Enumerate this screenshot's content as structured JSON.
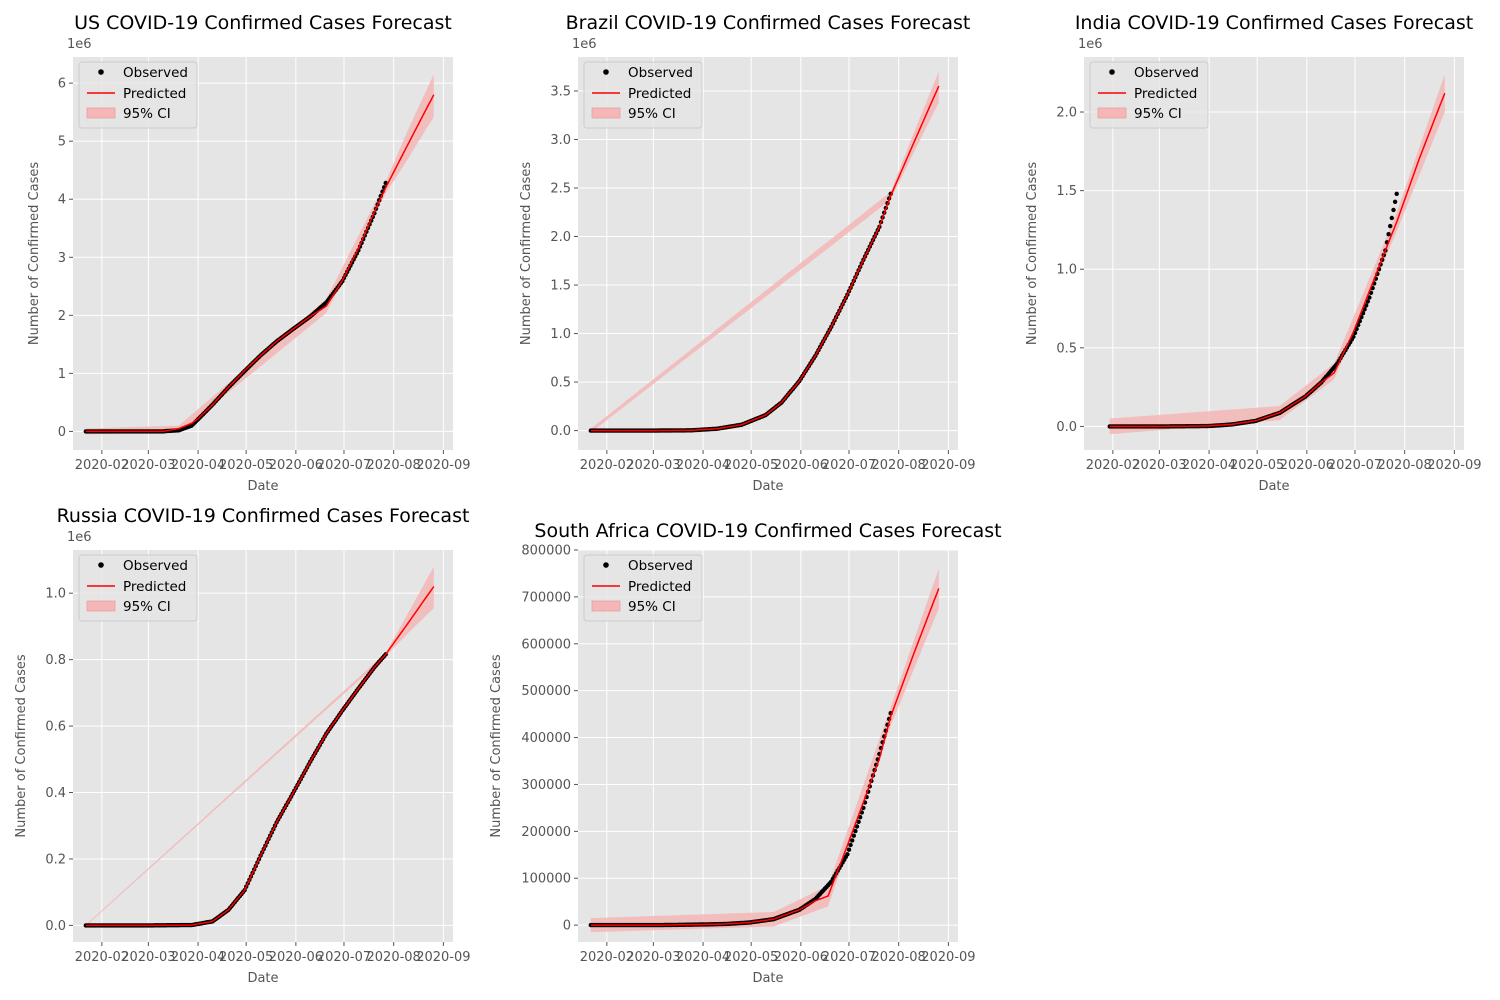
{
  "legend_labels": {
    "observed": "Observed",
    "predicted": "Predicted",
    "ci": "95% CI"
  },
  "colors": {
    "observed": "#000000",
    "predicted": "#ff0000",
    "ci": "#f4b6b6",
    "panel_bg": "#e5e5e5",
    "grid": "#ffffff",
    "text": "#555555",
    "title": "#000000"
  },
  "chart_data": [
    {
      "type": "line",
      "title": "US COVID-19 Confirmed Cases Forecast",
      "xlabel": "Date",
      "ylabel": "Number of Confirmed Cases",
      "y_offset_label": "1e6",
      "xticks": [
        "2020-02",
        "2020-03",
        "2020-04",
        "2020-05",
        "2020-06",
        "2020-07",
        "2020-08",
        "2020-09"
      ],
      "xlim": [
        "2020-01-14",
        "2020-09-07"
      ],
      "ylim": [
        -0.32,
        6.45
      ],
      "yticks": [
        0,
        1,
        2,
        3,
        4,
        5,
        6
      ],
      "yticklabels": [
        "0",
        "1",
        "2",
        "3",
        "4",
        "5",
        "6"
      ],
      "observed_range": [
        "2020-01-22",
        "2020-07-27"
      ],
      "forecast_end": "2020-08-26",
      "grid": true,
      "legend_position": "upper-left",
      "observed": [
        [
          "2020-01-22",
          0
        ],
        [
          "2020-02-15",
          0
        ],
        [
          "2020-03-10",
          0.001
        ],
        [
          "2020-03-20",
          0.02
        ],
        [
          "2020-03-28",
          0.1
        ],
        [
          "2020-04-01",
          0.21
        ],
        [
          "2020-04-10",
          0.46
        ],
        [
          "2020-04-20",
          0.76
        ],
        [
          "2020-04-30",
          1.04
        ],
        [
          "2020-05-10",
          1.31
        ],
        [
          "2020-05-20",
          1.55
        ],
        [
          "2020-05-31",
          1.78
        ],
        [
          "2020-06-10",
          1.98
        ],
        [
          "2020-06-20",
          2.22
        ],
        [
          "2020-06-30",
          2.59
        ],
        [
          "2020-07-10",
          3.12
        ],
        [
          "2020-07-20",
          3.76
        ],
        [
          "2020-07-27",
          4.28
        ]
      ],
      "predicted": [
        [
          "2020-01-22",
          0
        ],
        [
          "2020-02-15",
          0
        ],
        [
          "2020-03-10",
          0
        ],
        [
          "2020-03-20",
          0.05
        ],
        [
          "2020-03-28",
          0.14
        ],
        [
          "2020-04-01",
          0.22
        ],
        [
          "2020-04-10",
          0.46
        ],
        [
          "2020-04-20",
          0.76
        ],
        [
          "2020-04-30",
          1.05
        ],
        [
          "2020-05-10",
          1.31
        ],
        [
          "2020-05-20",
          1.55
        ],
        [
          "2020-05-31",
          1.78
        ],
        [
          "2020-06-10",
          1.98
        ],
        [
          "2020-06-20",
          2.16
        ],
        [
          "2020-06-30",
          2.6
        ],
        [
          "2020-07-10",
          3.15
        ],
        [
          "2020-07-20",
          3.78
        ],
        [
          "2020-07-27",
          4.2
        ],
        [
          "2020-08-10",
          4.95
        ],
        [
          "2020-08-26",
          5.8
        ]
      ],
      "ci_lower": [
        [
          "2020-01-22",
          -0.05
        ],
        [
          "2020-03-20",
          -0.02
        ],
        [
          "2020-06-20",
          2.04
        ],
        [
          "2020-07-27",
          4.1
        ],
        [
          "2020-08-10",
          4.7
        ],
        [
          "2020-08-26",
          5.42
        ]
      ],
      "ci_upper": [
        [
          "2020-01-22",
          0.05
        ],
        [
          "2020-03-20",
          0.1
        ],
        [
          "2020-06-20",
          2.28
        ],
        [
          "2020-07-27",
          4.3
        ],
        [
          "2020-08-10",
          5.2
        ],
        [
          "2020-08-26",
          6.15
        ]
      ]
    },
    {
      "type": "line",
      "title": "Brazil COVID-19 Confirmed Cases Forecast",
      "xlabel": "Date",
      "ylabel": "Number of Confirmed Cases",
      "y_offset_label": "1e6",
      "xticks": [
        "2020-02",
        "2020-03",
        "2020-04",
        "2020-05",
        "2020-06",
        "2020-07",
        "2020-08",
        "2020-09"
      ],
      "xlim": [
        "2020-01-14",
        "2020-09-07"
      ],
      "ylim": [
        -0.2,
        3.85
      ],
      "yticks": [
        0,
        0.5,
        1.0,
        1.5,
        2.0,
        2.5,
        3.0,
        3.5
      ],
      "yticklabels": [
        "0.0",
        "0.5",
        "1.0",
        "1.5",
        "2.0",
        "2.5",
        "3.0",
        "3.5"
      ],
      "observed_range": [
        "2020-01-22",
        "2020-07-27"
      ],
      "forecast_end": "2020-08-26",
      "grid": true,
      "legend_position": "upper-left",
      "observed": [
        [
          "2020-01-22",
          0
        ],
        [
          "2020-03-01",
          0
        ],
        [
          "2020-03-25",
          0.003
        ],
        [
          "2020-04-10",
          0.02
        ],
        [
          "2020-04-25",
          0.06
        ],
        [
          "2020-05-10",
          0.16
        ],
        [
          "2020-05-20",
          0.29
        ],
        [
          "2020-05-31",
          0.51
        ],
        [
          "2020-06-10",
          0.77
        ],
        [
          "2020-06-20",
          1.07
        ],
        [
          "2020-06-30",
          1.4
        ],
        [
          "2020-07-10",
          1.76
        ],
        [
          "2020-07-20",
          2.1
        ],
        [
          "2020-07-27",
          2.44
        ]
      ],
      "predicted": [
        [
          "2020-01-22",
          0
        ],
        [
          "2020-03-01",
          0
        ],
        [
          "2020-03-25",
          0.003
        ],
        [
          "2020-04-10",
          0.02
        ],
        [
          "2020-04-25",
          0.06
        ],
        [
          "2020-05-10",
          0.16
        ],
        [
          "2020-05-20",
          0.29
        ],
        [
          "2020-05-31",
          0.51
        ],
        [
          "2020-06-10",
          0.77
        ],
        [
          "2020-06-20",
          1.07
        ],
        [
          "2020-06-30",
          1.4
        ],
        [
          "2020-07-10",
          1.76
        ],
        [
          "2020-07-20",
          2.1
        ],
        [
          "2020-07-27",
          2.42
        ],
        [
          "2020-08-10",
          2.95
        ],
        [
          "2020-08-26",
          3.55
        ]
      ],
      "ci_lower": [
        [
          "2020-01-22",
          -0.02
        ],
        [
          "2020-07-27",
          2.38
        ],
        [
          "2020-08-10",
          2.85
        ],
        [
          "2020-08-26",
          3.38
        ]
      ],
      "ci_upper": [
        [
          "2020-01-22",
          0.02
        ],
        [
          "2020-07-27",
          2.46
        ],
        [
          "2020-08-10",
          3.05
        ],
        [
          "2020-08-26",
          3.7
        ]
      ]
    },
    {
      "type": "line",
      "title": "India COVID-19 Confirmed Cases Forecast",
      "xlabel": "Date",
      "ylabel": "Number of Confirmed Cases",
      "y_offset_label": "1e6",
      "xticks": [
        "2020-02",
        "2020-03",
        "2020-04",
        "2020-05",
        "2020-06",
        "2020-07",
        "2020-08",
        "2020-09"
      ],
      "xlim": [
        "2020-01-14",
        "2020-09-07"
      ],
      "ylim": [
        -0.15,
        2.35
      ],
      "yticks": [
        0,
        0.5,
        1.0,
        1.5,
        2.0
      ],
      "yticklabels": [
        "0.0",
        "0.5",
        "1.0",
        "1.5",
        "2.0"
      ],
      "observed_range": [
        "2020-01-30",
        "2020-07-27"
      ],
      "forecast_end": "2020-08-26",
      "grid": true,
      "legend_position": "upper-left",
      "observed": [
        [
          "2020-01-30",
          0
        ],
        [
          "2020-03-01",
          0
        ],
        [
          "2020-03-31",
          0.002
        ],
        [
          "2020-04-15",
          0.012
        ],
        [
          "2020-04-30",
          0.035
        ],
        [
          "2020-05-15",
          0.086
        ],
        [
          "2020-05-31",
          0.19
        ],
        [
          "2020-06-10",
          0.28
        ],
        [
          "2020-06-20",
          0.4
        ],
        [
          "2020-06-30",
          0.57
        ],
        [
          "2020-07-10",
          0.82
        ],
        [
          "2020-07-20",
          1.12
        ],
        [
          "2020-07-27",
          1.48
        ]
      ],
      "predicted": [
        [
          "2020-01-30",
          0
        ],
        [
          "2020-03-01",
          0
        ],
        [
          "2020-03-31",
          0.003
        ],
        [
          "2020-04-15",
          0.013
        ],
        [
          "2020-04-30",
          0.036
        ],
        [
          "2020-05-15",
          0.087
        ],
        [
          "2020-05-31",
          0.19
        ],
        [
          "2020-06-10",
          0.28
        ],
        [
          "2020-06-18",
          0.34
        ],
        [
          "2020-06-30",
          0.6
        ],
        [
          "2020-07-10",
          0.86
        ],
        [
          "2020-07-20",
          1.12
        ],
        [
          "2020-07-27",
          1.3
        ],
        [
          "2020-08-10",
          1.7
        ],
        [
          "2020-08-26",
          2.12
        ]
      ],
      "ci_lower": [
        [
          "2020-01-30",
          -0.05
        ],
        [
          "2020-05-15",
          0.04
        ],
        [
          "2020-06-18",
          0.3
        ],
        [
          "2020-07-27",
          1.24
        ],
        [
          "2020-08-26",
          2.0
        ]
      ],
      "ci_upper": [
        [
          "2020-01-30",
          0.05
        ],
        [
          "2020-05-15",
          0.13
        ],
        [
          "2020-06-18",
          0.4
        ],
        [
          "2020-07-27",
          1.36
        ],
        [
          "2020-08-26",
          2.24
        ]
      ]
    },
    {
      "type": "line",
      "title": "Russia COVID-19 Confirmed Cases Forecast",
      "xlabel": "Date",
      "ylabel": "Number of Confirmed Cases",
      "y_offset_label": "1e6",
      "xticks": [
        "2020-02",
        "2020-03",
        "2020-04",
        "2020-05",
        "2020-06",
        "2020-07",
        "2020-08",
        "2020-09"
      ],
      "xlim": [
        "2020-01-14",
        "2020-09-07"
      ],
      "ylim": [
        -0.05,
        1.13
      ],
      "yticks": [
        0,
        0.2,
        0.4,
        0.6,
        0.8,
        1.0
      ],
      "yticklabels": [
        "0.0",
        "0.2",
        "0.4",
        "0.6",
        "0.8",
        "1.0"
      ],
      "observed_range": [
        "2020-01-22",
        "2020-07-27"
      ],
      "forecast_end": "2020-08-26",
      "grid": true,
      "legend_position": "upper-left",
      "observed": [
        [
          "2020-01-22",
          0
        ],
        [
          "2020-03-01",
          0
        ],
        [
          "2020-03-28",
          0.001
        ],
        [
          "2020-04-10",
          0.012
        ],
        [
          "2020-04-20",
          0.047
        ],
        [
          "2020-04-30",
          0.106
        ],
        [
          "2020-05-10",
          0.21
        ],
        [
          "2020-05-20",
          0.31
        ],
        [
          "2020-05-31",
          0.405
        ],
        [
          "2020-06-10",
          0.493
        ],
        [
          "2020-06-20",
          0.577
        ],
        [
          "2020-06-30",
          0.647
        ],
        [
          "2020-07-10",
          0.713
        ],
        [
          "2020-07-20",
          0.777
        ],
        [
          "2020-07-27",
          0.816
        ]
      ],
      "predicted": [
        [
          "2020-01-22",
          0
        ],
        [
          "2020-03-01",
          0
        ],
        [
          "2020-03-28",
          0.001
        ],
        [
          "2020-04-10",
          0.012
        ],
        [
          "2020-04-20",
          0.047
        ],
        [
          "2020-04-30",
          0.106
        ],
        [
          "2020-05-10",
          0.21
        ],
        [
          "2020-05-20",
          0.31
        ],
        [
          "2020-05-31",
          0.405
        ],
        [
          "2020-06-10",
          0.493
        ],
        [
          "2020-06-20",
          0.577
        ],
        [
          "2020-06-30",
          0.647
        ],
        [
          "2020-07-10",
          0.713
        ],
        [
          "2020-07-20",
          0.777
        ],
        [
          "2020-07-27",
          0.816
        ],
        [
          "2020-08-10",
          0.91
        ],
        [
          "2020-08-26",
          1.02
        ]
      ],
      "ci_lower": [
        [
          "2020-01-22",
          -0.002
        ],
        [
          "2020-07-27",
          0.81
        ],
        [
          "2020-08-10",
          0.88
        ],
        [
          "2020-08-26",
          0.955
        ]
      ],
      "ci_upper": [
        [
          "2020-01-22",
          0.002
        ],
        [
          "2020-07-27",
          0.82
        ],
        [
          "2020-08-10",
          0.94
        ],
        [
          "2020-08-26",
          1.08
        ]
      ]
    },
    {
      "type": "line",
      "title": "South Africa COVID-19 Confirmed Cases Forecast",
      "xlabel": "Date",
      "ylabel": "Number of Confirmed Cases",
      "y_offset_label": "",
      "xticks": [
        "2020-02",
        "2020-03",
        "2020-04",
        "2020-05",
        "2020-06",
        "2020-07",
        "2020-08",
        "2020-09"
      ],
      "xlim": [
        "2020-01-14",
        "2020-09-07"
      ],
      "ylim": [
        -36000,
        800000
      ],
      "yticks": [
        0,
        100000,
        200000,
        300000,
        400000,
        500000,
        600000,
        700000,
        800000
      ],
      "yticklabels": [
        "0",
        "100000",
        "200000",
        "300000",
        "400000",
        "500000",
        "600000",
        "700000",
        "800000"
      ],
      "observed_range": [
        "2020-01-22",
        "2020-07-27"
      ],
      "forecast_end": "2020-08-26",
      "grid": true,
      "legend_position": "upper-left",
      "observed": [
        [
          "2020-01-22",
          0
        ],
        [
          "2020-03-05",
          0
        ],
        [
          "2020-03-31",
          1300
        ],
        [
          "2020-04-15",
          2400
        ],
        [
          "2020-04-30",
          5600
        ],
        [
          "2020-05-15",
          12700
        ],
        [
          "2020-05-31",
          32700
        ],
        [
          "2020-06-10",
          55400
        ],
        [
          "2020-06-20",
          92700
        ],
        [
          "2020-06-30",
          151000
        ],
        [
          "2020-07-10",
          250000
        ],
        [
          "2020-07-20",
          365000
        ],
        [
          "2020-07-27",
          452000
        ]
      ],
      "predicted": [
        [
          "2020-01-22",
          0
        ],
        [
          "2020-03-05",
          0
        ],
        [
          "2020-03-31",
          1300
        ],
        [
          "2020-04-15",
          2400
        ],
        [
          "2020-04-30",
          5600
        ],
        [
          "2020-05-15",
          12700
        ],
        [
          "2020-05-31",
          32700
        ],
        [
          "2020-06-10",
          52000
        ],
        [
          "2020-06-18",
          62000
        ],
        [
          "2020-06-30",
          170000
        ],
        [
          "2020-07-10",
          262000
        ],
        [
          "2020-07-20",
          355000
        ],
        [
          "2020-07-27",
          445000
        ],
        [
          "2020-08-10",
          575000
        ],
        [
          "2020-08-26",
          718000
        ]
      ],
      "ci_lower": [
        [
          "2020-01-22",
          -15000
        ],
        [
          "2020-05-15",
          -3000
        ],
        [
          "2020-06-18",
          40000
        ],
        [
          "2020-07-27",
          425000
        ],
        [
          "2020-08-26",
          675000
        ]
      ],
      "ci_upper": [
        [
          "2020-01-22",
          15000
        ],
        [
          "2020-05-15",
          28000
        ],
        [
          "2020-06-18",
          84000
        ],
        [
          "2020-07-27",
          465000
        ],
        [
          "2020-08-26",
          760000
        ]
      ]
    }
  ]
}
